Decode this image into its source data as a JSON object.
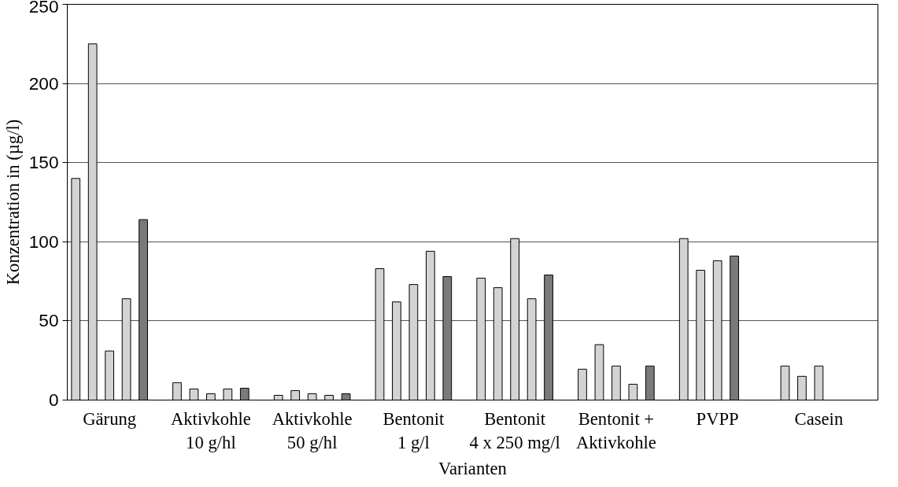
{
  "chart_data": {
    "type": "bar",
    "xlabel": "Varianten",
    "ylabel": "Konzentration in (µg/l)",
    "categories": [
      "Gärung",
      "Aktivkohle\n10 g/hl",
      "Aktivkohle\n50 g/hl",
      "Bentonit\n1 g/l",
      "Bentonit\n4 x 250 mg/l",
      "Bentonit +\nAktivkohle",
      "PVPP",
      "Casein"
    ],
    "series": [
      {
        "color": "#d3d3d3",
        "values": [
          140,
          11,
          3,
          83,
          77,
          19.5,
          102,
          21.5
        ]
      },
      {
        "color": "#d3d3d3",
        "values": [
          225,
          7,
          6,
          62,
          71,
          35,
          82,
          15
        ]
      },
      {
        "color": "#d3d3d3",
        "values": [
          31,
          4,
          4,
          73,
          102,
          21.5,
          88,
          21.5
        ]
      },
      {
        "colors": [
          "#d3d3d3",
          "#d3d3d3",
          "#d3d3d3",
          "#d3d3d3",
          "#d3d3d3",
          "#d3d3d3",
          "#7a7a7a",
          "#d3d3d3"
        ],
        "values": [
          64,
          7,
          3,
          94,
          64,
          10,
          91,
          null
        ]
      },
      {
        "color": "#7a7a7a",
        "values": [
          114,
          7.5,
          4,
          78,
          79,
          21.5,
          null,
          null
        ]
      }
    ],
    "ylim": [
      0,
      250
    ],
    "yticks": [
      0,
      50,
      100,
      150,
      200,
      250
    ],
    "grid": "y"
  }
}
